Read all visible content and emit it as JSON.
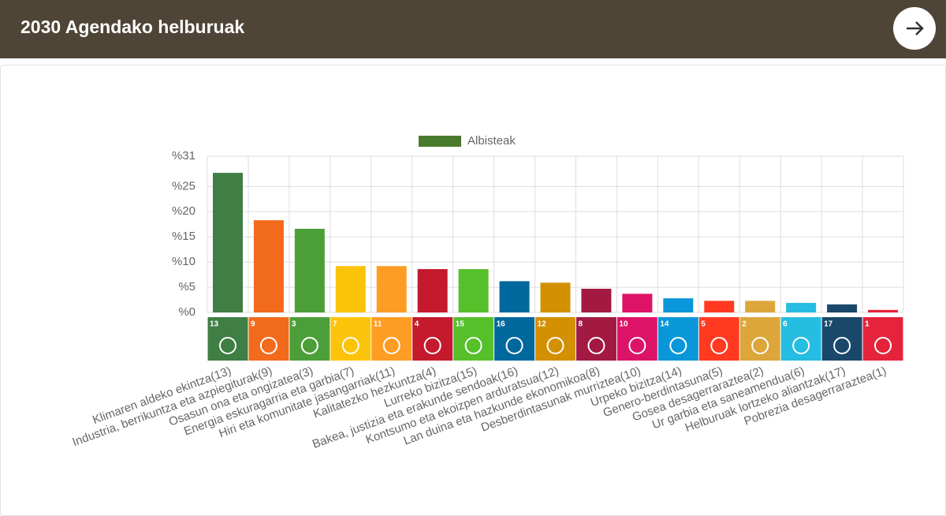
{
  "header": {
    "title": "2030 Agendako helburuak"
  },
  "chart_data": {
    "type": "bar",
    "categories": [
      "Klimaren aldeko ekintza(13)",
      "Industria, berrikuntza eta azpiegiturak(9)",
      "Osasun ona eta ongizatea(3)",
      "Energia eskuragarria eta garbia(7)",
      "Hiri eta komunitate jasangarriak(11)",
      "Kalitatezko hezkuntza(4)",
      "Lurreko bizitza(15)",
      "Bakea, justizia eta erakunde sendoak(16)",
      "Kontsumo eta ekoizpen arduratsua(12)",
      "Lan duina eta hazkunde ekonomikoa(8)",
      "Desberdintasunak murriztea(10)",
      "Urpeko bizitza(14)",
      "Genero-berdintasuna(5)",
      "Gosea desagerraraztea(2)",
      "Ur garbia eta saneamendua(6)",
      "Helburuak lortzeko aliantzak(17)",
      "Pobrezia desagerraraztea(1)"
    ],
    "icon_labels": [
      "13",
      "9",
      "3",
      "7",
      "11",
      "4",
      "15",
      "16",
      "12",
      "8",
      "10",
      "14",
      "5",
      "2",
      "6",
      "17",
      "1"
    ],
    "series": [
      {
        "name": "Albisteak",
        "color": "#4a7a2d",
        "colors": [
          "#3f7e44",
          "#f26a1b",
          "#4c9f38",
          "#fcc30b",
          "#fd9d24",
          "#c5192d",
          "#56c02b",
          "#00689d",
          "#d39000",
          "#a21942",
          "#dd1367",
          "#0a97d9",
          "#ff3a21",
          "#dda63a",
          "#26bde2",
          "#19486a",
          "#e5243b"
        ],
        "values": [
          27.7,
          18.3,
          16.6,
          9.2,
          9.2,
          8.6,
          8.6,
          6.2,
          5.9,
          4.7,
          3.7,
          2.8,
          2.3,
          2.3,
          1.9,
          1.6,
          0.5
        ]
      }
    ],
    "ylim": [
      0,
      31
    ],
    "yticks": [
      {
        "value": 0,
        "label": "%0"
      },
      {
        "value": 5,
        "label": "%5"
      },
      {
        "value": 10,
        "label": "%10"
      },
      {
        "value": 15,
        "label": "%15"
      },
      {
        "value": 20,
        "label": "%20"
      },
      {
        "value": 25,
        "label": "%25"
      },
      {
        "value": 31,
        "label": "%31"
      }
    ],
    "grid": true
  }
}
